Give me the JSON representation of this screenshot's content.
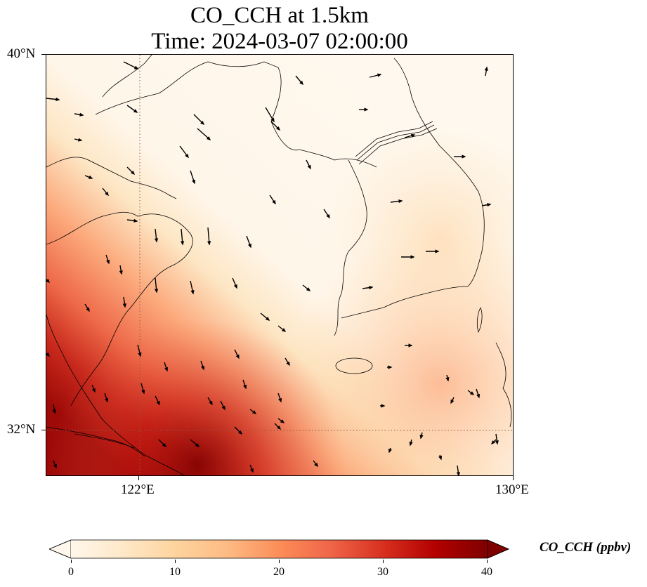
{
  "title_line1": "CO_CCH at 1.5km",
  "title_line2": "Time: 2024-03-07 02:00:00",
  "map": {
    "lon_range": [
      121.0,
      130.0
    ],
    "lat_range": [
      31.1,
      40.0
    ],
    "lon_ticks": [
      {
        "value": 122,
        "label": "122°E"
      },
      {
        "value": 130,
        "label": "130°E"
      }
    ],
    "lat_ticks": [
      {
        "value": 40,
        "label": "40°N"
      },
      {
        "value": 32,
        "label": "32°N"
      }
    ],
    "gridlines": "dotted",
    "variable": "CO_CCH",
    "units": "ppbv"
  },
  "colorbar": {
    "label": "CO_CCH (ppbv)",
    "min": 0,
    "max": 40,
    "extend": "both",
    "colormap": "OrRd",
    "ticks": [
      "0",
      "10",
      "20",
      "30",
      "40"
    ],
    "colors": [
      "#fff7ec",
      "#fee8c8",
      "#fdd49e",
      "#fdbb84",
      "#fc8d59",
      "#ef6548",
      "#d7301f",
      "#b30000",
      "#7f0000"
    ]
  },
  "icons": {
    "wind_vectors": "wind-arrow-icon"
  }
}
